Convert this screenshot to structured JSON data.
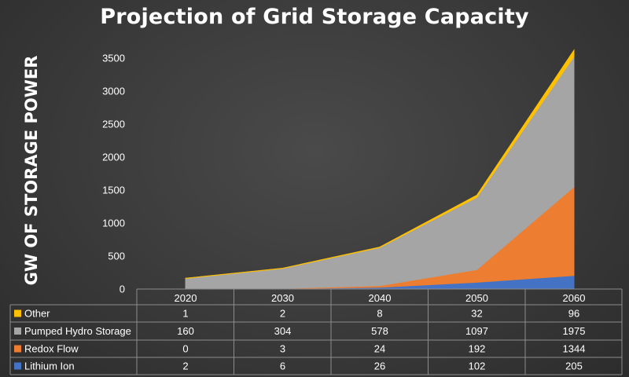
{
  "chart_data": {
    "type": "area",
    "stacked": true,
    "title": "Projection of Grid Storage Capacity",
    "ylabel": "GW OF STORAGE POWER",
    "xlabel": "",
    "ylim": [
      0,
      3500
    ],
    "yticks": [
      0,
      500,
      1000,
      1500,
      2000,
      2500,
      3000,
      3500
    ],
    "categories": [
      "2020",
      "2030",
      "2040",
      "2050",
      "2060"
    ],
    "grid": false,
    "legend": "data-table-below",
    "series": [
      {
        "name": "Lithium Ion",
        "color": "#4472c4",
        "values": [
          2,
          6,
          26,
          102,
          205
        ]
      },
      {
        "name": "Redox Flow",
        "color": "#ed7d31",
        "values": [
          0,
          3,
          24,
          192,
          1344
        ]
      },
      {
        "name": "Pumped Hydro Storage",
        "color": "#a5a5a5",
        "values": [
          160,
          304,
          578,
          1097,
          1975
        ]
      },
      {
        "name": "Other",
        "color": "#ffc000",
        "values": [
          1,
          2,
          8,
          32,
          96
        ]
      }
    ]
  }
}
